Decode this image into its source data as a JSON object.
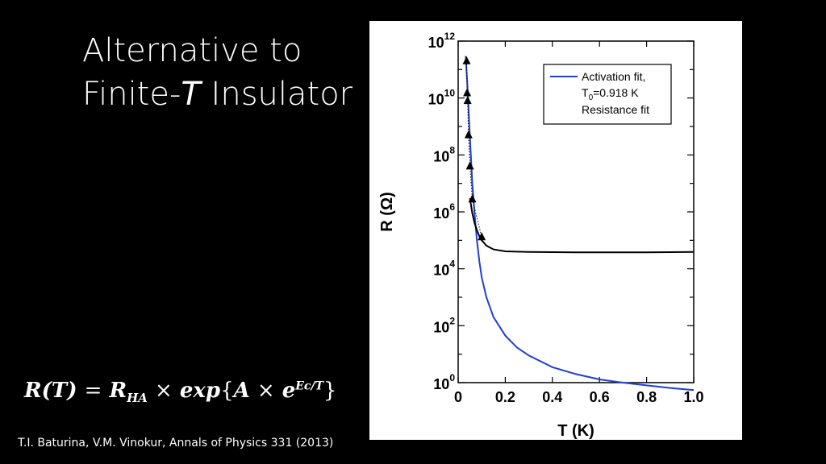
{
  "slide": {
    "title_line1": "Alternative to",
    "title_line2_a": "Finite-",
    "title_line2_b": "T",
    "title_line2_c": " Insulator",
    "citation": "T.I. Baturina, V.M. Vinokur, Annals of Physics 331 (2013)"
  },
  "formula": {
    "lhs": "R(T)",
    "eq": "=",
    "r": "R",
    "r_sub": "HA",
    "times1": "×",
    "exp": "exp",
    "lbrace": "{",
    "a": "A",
    "times2": "×",
    "e": "e",
    "e_sup": "Ec/T",
    "rbrace": "}"
  },
  "chart_data": {
    "type": "line",
    "xlabel": "T (K)",
    "ylabel": "R (Ω)",
    "xlim": [
      0,
      1.0
    ],
    "ylim_log10": [
      0,
      12
    ],
    "y_scale": "log",
    "x_ticks": [
      0,
      0.2,
      0.4,
      0.6,
      0.8,
      1.0
    ],
    "x_tick_labels": [
      "0",
      "0.2",
      "0.4",
      "0.6",
      "0.8",
      "1.0"
    ],
    "y_tick_exponents": [
      0,
      2,
      4,
      6,
      8,
      10,
      12
    ],
    "y_tick_base": "10",
    "legend_position": "top-right",
    "legend": {
      "line1": "Activation fit,",
      "line2_a": "T",
      "line2_sub": "0",
      "line2_b": "=0.918 K",
      "line3": "Resistance fit"
    },
    "series": [
      {
        "name": "Activation fit, T0=0.918 K",
        "color": "#1f3fd1",
        "style": "line",
        "x": [
          0.032,
          0.036,
          0.04,
          0.045,
          0.05,
          0.055,
          0.06,
          0.07,
          0.08,
          0.09,
          0.1,
          0.12,
          0.15,
          0.2,
          0.25,
          0.3,
          0.4,
          0.5,
          0.6,
          0.7,
          0.8,
          0.9,
          1.0
        ],
        "y": [
          300000000000.0,
          80000000000.0,
          20000000000.0,
          3000000000.0,
          400000000.0,
          60000000.0,
          10000000.0,
          800000.0,
          90000.0,
          18000.0,
          5000.0,
          1000.0,
          200,
          45,
          17,
          9,
          3.5,
          2,
          1.3,
          1.0,
          0.8,
          0.65,
          0.55
        ]
      },
      {
        "name": "Resistance fit",
        "color": "#000000",
        "style": "line",
        "x": [
          0.05,
          0.06,
          0.07,
          0.08,
          0.09,
          0.1,
          0.12,
          0.15,
          0.2,
          0.3,
          0.4,
          0.5,
          0.6,
          0.7,
          0.8,
          0.9,
          1.0
        ],
        "y": [
          3000000.0,
          900000.0,
          400000.0,
          220000.0,
          140000.0,
          100000.0,
          65000.0,
          48000.0,
          41000.0,
          39000.0,
          38500.0,
          38000.0,
          38000.0,
          38000.0,
          38000.0,
          38500.0,
          39000.0
        ]
      },
      {
        "name": "data",
        "color": "#000000",
        "style": "triangle-markers",
        "x": [
          0.036,
          0.038,
          0.04,
          0.044,
          0.05,
          0.06,
          0.1
        ],
        "y": [
          200000000000.0,
          15000000000.0,
          8000000000.0,
          500000000.0,
          40000000.0,
          2800000.0,
          130000.0
        ]
      }
    ]
  }
}
